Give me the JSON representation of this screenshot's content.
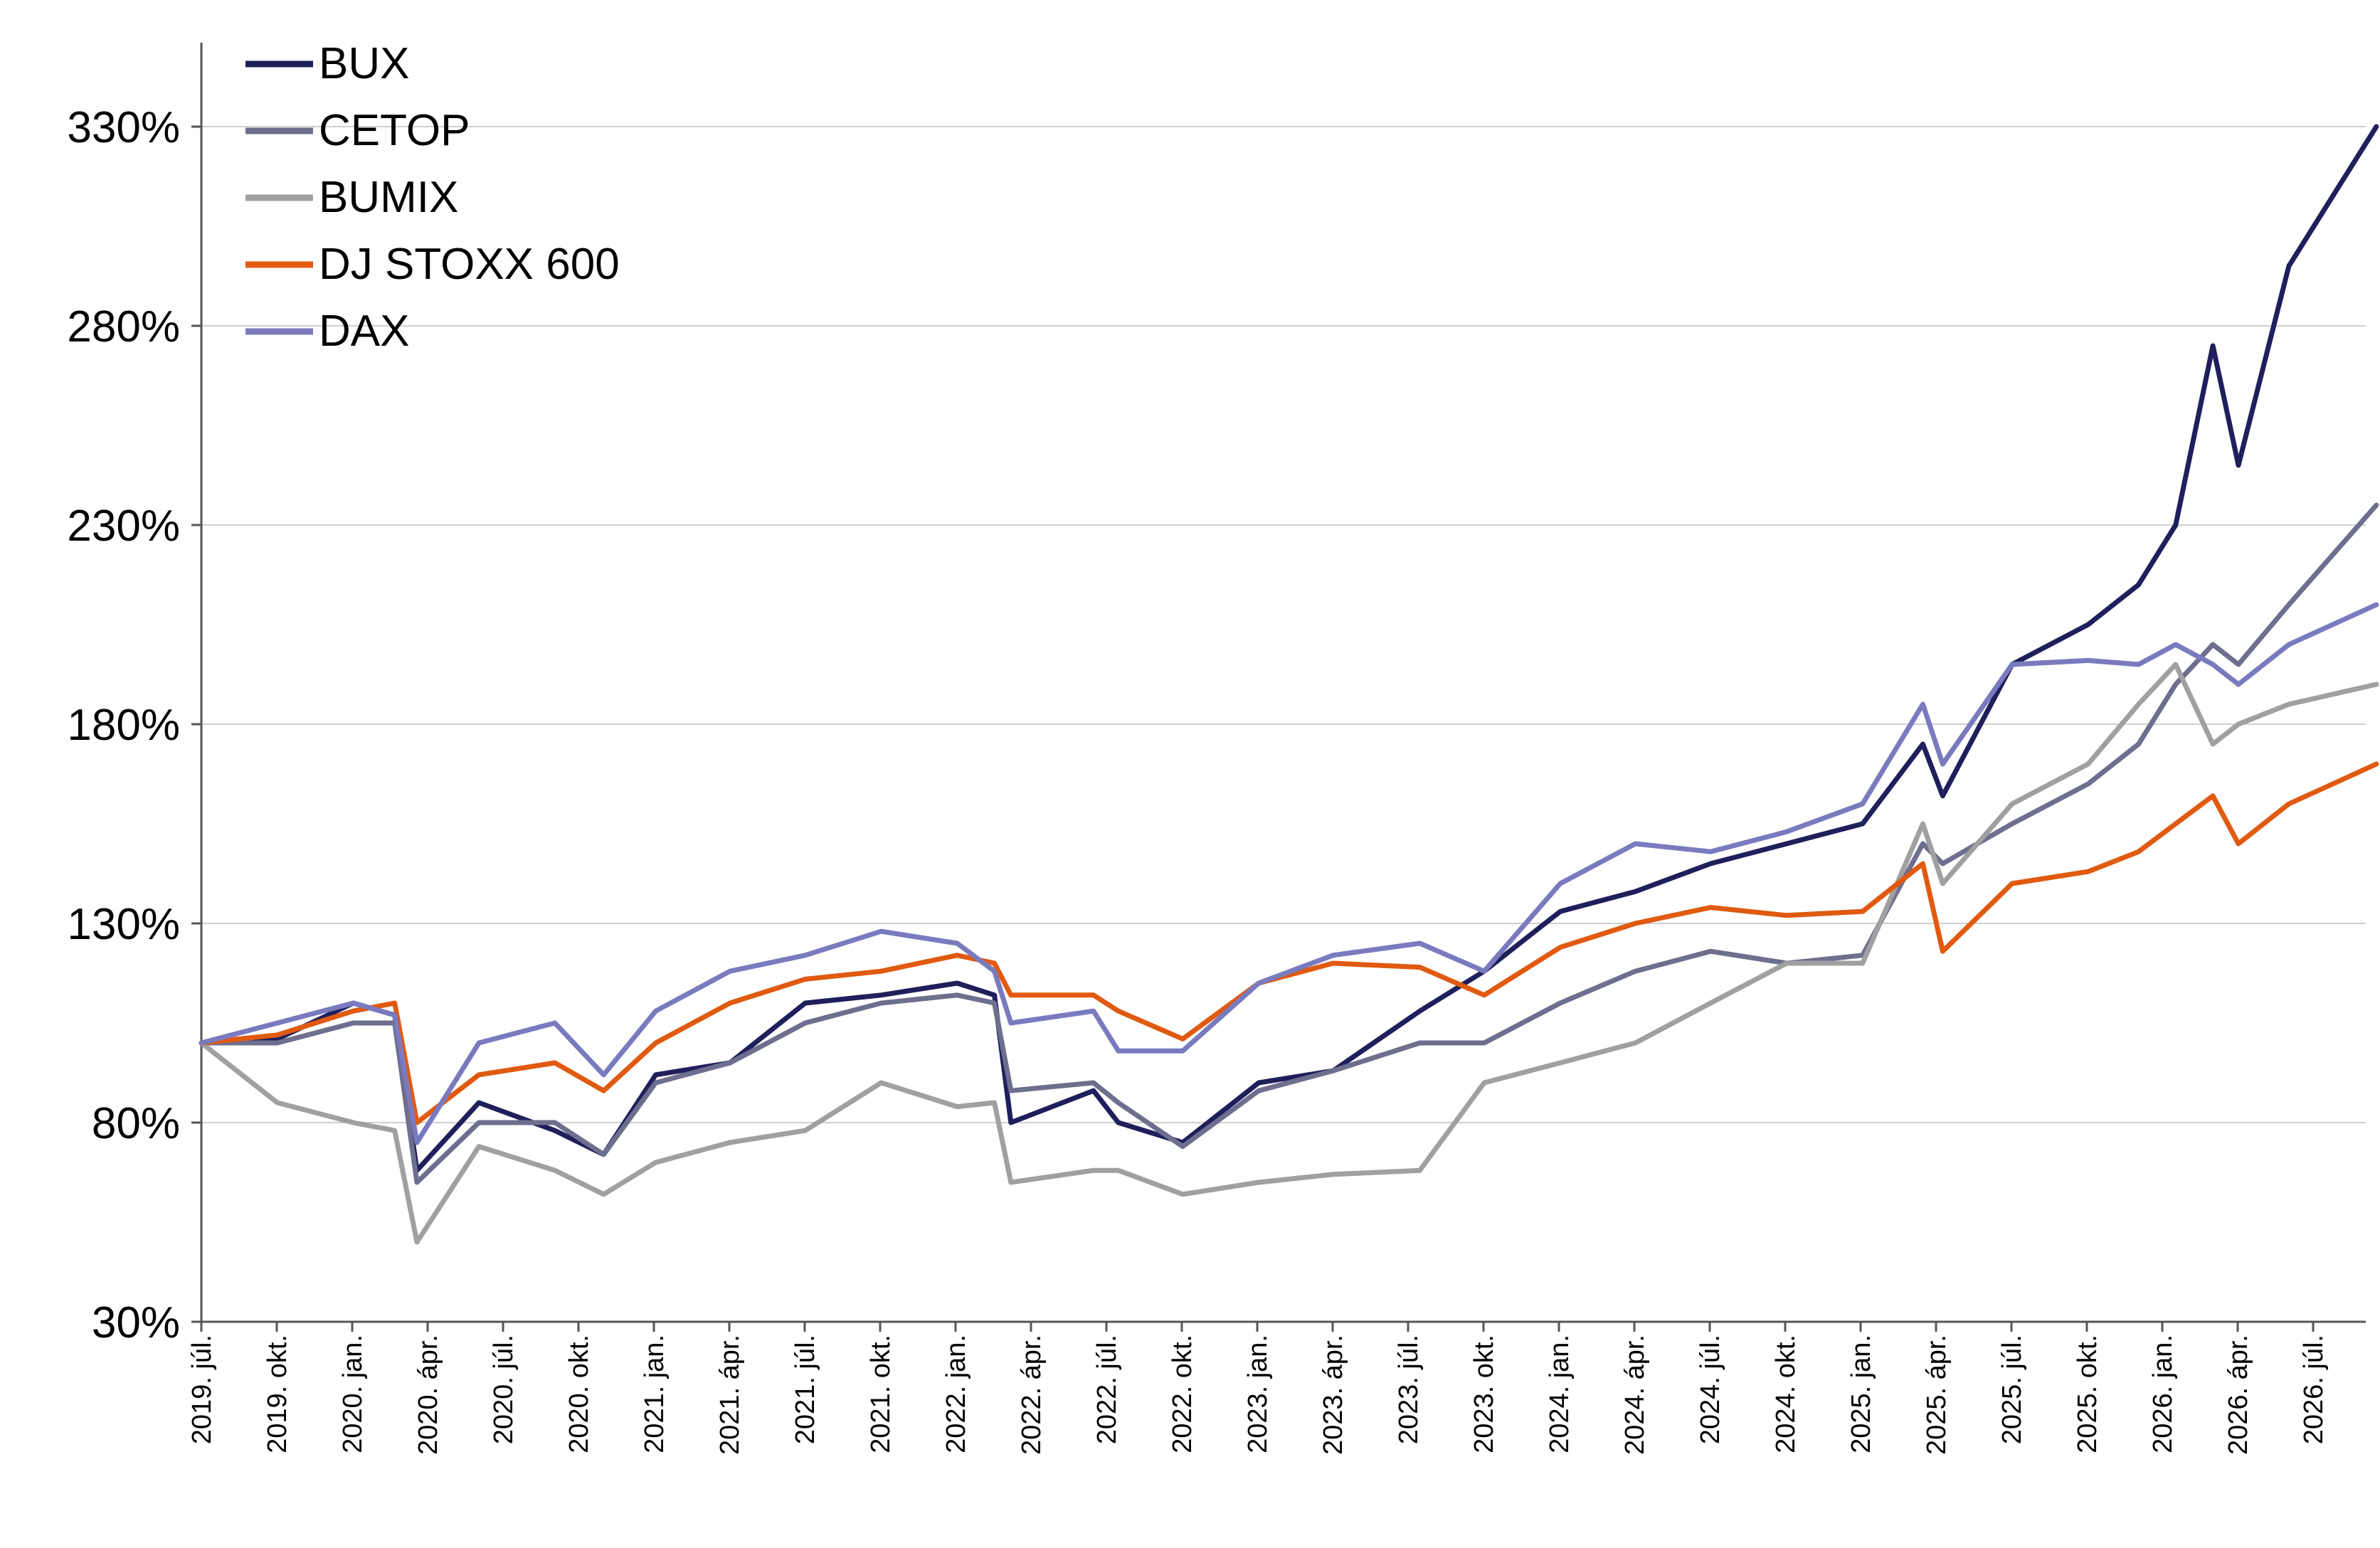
{
  "chart_data": {
    "type": "line",
    "title": "",
    "xlabel": "",
    "ylabel": "",
    "ylim": [
      30,
      350
    ],
    "y_ticks": [
      "30%",
      "80%",
      "130%",
      "180%",
      "230%",
      "280%",
      "330%"
    ],
    "y_tick_values": [
      30,
      80,
      130,
      180,
      230,
      280,
      330
    ],
    "x_ticks": [
      "2019. júl.",
      "2019. okt.",
      "2020. jan.",
      "2020. ápr.",
      "2020. júl.",
      "2020. okt.",
      "2021. jan.",
      "2021. ápr.",
      "2021. júl.",
      "2021. okt.",
      "2022. jan.",
      "2022. ápr.",
      "2022. júl.",
      "2022. okt.",
      "2023. jan.",
      "2023. ápr.",
      "2023. júl.",
      "2023. okt.",
      "2024. jan.",
      "2024. ápr.",
      "2024. júl.",
      "2024. okt.",
      "2025. jan.",
      "2025. ápr.",
      "2025. júl.",
      "2025. okt.",
      "2026. jan.",
      "2026. ápr.",
      "2026. júl."
    ],
    "grid": "horizontal",
    "legend_position": "top-left",
    "x_dates": [
      "2019-07-01",
      "2019-10-01",
      "2020-01-01",
      "2020-02-20",
      "2020-03-18",
      "2020-06-01",
      "2020-09-01",
      "2020-10-30",
      "2021-01-01",
      "2021-04-01",
      "2021-07-01",
      "2021-10-01",
      "2022-01-01",
      "2022-02-15",
      "2022-03-07",
      "2022-06-15",
      "2022-07-15",
      "2022-10-01",
      "2023-01-01",
      "2023-04-01",
      "2023-07-15",
      "2023-10-01",
      "2024-01-01",
      "2024-04-01",
      "2024-07-01",
      "2024-10-01",
      "2025-01-01",
      "2025-03-15",
      "2025-04-08",
      "2025-07-01",
      "2025-10-01",
      "2025-12-01",
      "2026-01-15",
      "2026-03-01",
      "2026-04-01",
      "2026-06-01",
      "2026-09-15"
    ],
    "series": [
      {
        "name": "BUX",
        "color": "#1f1f5c",
        "values": [
          100,
          101,
          110,
          107,
          68,
          85,
          78,
          72,
          92,
          95,
          110,
          112,
          115,
          112,
          80,
          88,
          80,
          75,
          90,
          93,
          108,
          118,
          133,
          138,
          145,
          150,
          155,
          175,
          162,
          195,
          205,
          215,
          230,
          275,
          245,
          295,
          330
        ]
      },
      {
        "name": "CETOP",
        "color": "#6e6e8e",
        "values": [
          100,
          100,
          105,
          105,
          65,
          80,
          80,
          72,
          90,
          95,
          105,
          110,
          112,
          110,
          88,
          90,
          85,
          74,
          88,
          93,
          100,
          100,
          110,
          118,
          123,
          120,
          122,
          150,
          145,
          155,
          165,
          175,
          190,
          200,
          195,
          210,
          235
        ]
      },
      {
        "name": "BUMIX",
        "color": "#a0a0a0",
        "values": [
          100,
          85,
          80,
          78,
          50,
          74,
          68,
          62,
          70,
          75,
          78,
          90,
          84,
          85,
          65,
          68,
          68,
          62,
          65,
          67,
          68,
          90,
          95,
          100,
          110,
          120,
          120,
          155,
          140,
          160,
          170,
          185,
          195,
          175,
          180,
          185,
          190
        ]
      },
      {
        "name": "DJ STOXX 600",
        "color": "#e05a10",
        "values": [
          100,
          102,
          108,
          110,
          80,
          92,
          95,
          88,
          100,
          110,
          116,
          118,
          122,
          120,
          112,
          112,
          108,
          101,
          115,
          120,
          119,
          112,
          124,
          130,
          134,
          132,
          133,
          145,
          123,
          140,
          143,
          148,
          155,
          162,
          150,
          160,
          170
        ]
      },
      {
        "name": "DAX",
        "color": "#7a7abf",
        "values": [
          100,
          105,
          110,
          107,
          75,
          100,
          105,
          92,
          108,
          118,
          122,
          128,
          125,
          118,
          105,
          108,
          98,
          98,
          115,
          122,
          125,
          118,
          140,
          150,
          148,
          153,
          160,
          185,
          170,
          195,
          196,
          195,
          200,
          195,
          190,
          200,
          210
        ]
      }
    ]
  }
}
